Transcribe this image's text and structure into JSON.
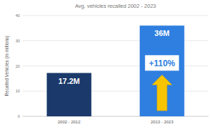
{
  "chart_data": {
    "type": "bar",
    "title": "Avg. vehicles recalled 2002 - 2023",
    "y_label": "Recalled Vehicles (in millions)",
    "categories": [
      "2002 - 2012",
      "2013 - 2023"
    ],
    "values": [
      17.2,
      36
    ],
    "value_labels": [
      "17.2M",
      "36M"
    ],
    "colors": [
      "#1b3a6b",
      "#2f7fe0"
    ],
    "ylim": [
      0,
      40
    ],
    "yticks": [
      0,
      10,
      20,
      30,
      40
    ],
    "grid": true,
    "data_labels": true,
    "annotations": [
      "+110%"
    ]
  }
}
